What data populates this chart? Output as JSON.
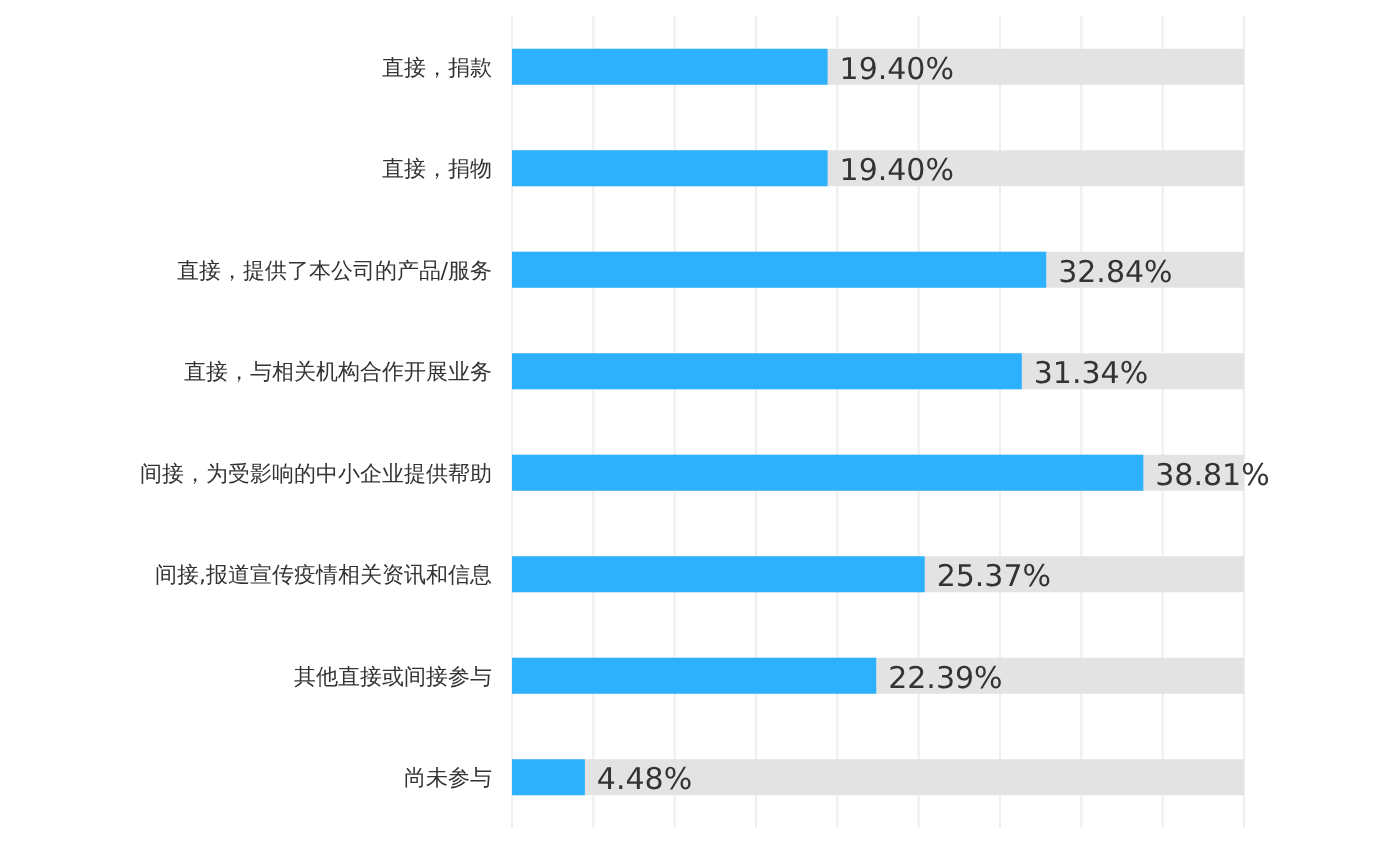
{
  "chart_data": {
    "type": "bar",
    "orientation": "horizontal",
    "categories": [
      "直接，捐款",
      "直接，捐物",
      "直接，提供了本公司的产品/服务",
      "直接，与相关机构合作开展业务",
      "间接，为受影响的中小企业提供帮助",
      "间接,报道宣传疫情相关资讯和信息",
      "其他直接或间接参与",
      "尚未参与"
    ],
    "values": [
      19.4,
      19.4,
      32.84,
      31.34,
      38.81,
      25.37,
      22.39,
      4.48
    ],
    "value_labels": [
      "19.40%",
      "19.40%",
      "32.84%",
      "31.34%",
      "38.81%",
      "25.37%",
      "22.39%",
      "4.48%"
    ],
    "color": "#2eb1fc",
    "xlim": [
      0,
      45
    ],
    "xticks": [
      {
        "value": 0,
        "label": null
      },
      {
        "value": 5,
        "label": null
      },
      {
        "value": 10,
        "label": null
      },
      {
        "value": 15,
        "label": null
      },
      {
        "value": 20,
        "label": null
      },
      {
        "value": 25,
        "label": null
      },
      {
        "value": 30,
        "label": null
      },
      {
        "value": 35,
        "label": null
      },
      {
        "value": 40,
        "label": null
      },
      {
        "value": 45,
        "label": null
      }
    ],
    "grid": "x",
    "tick_labels": "y"
  }
}
